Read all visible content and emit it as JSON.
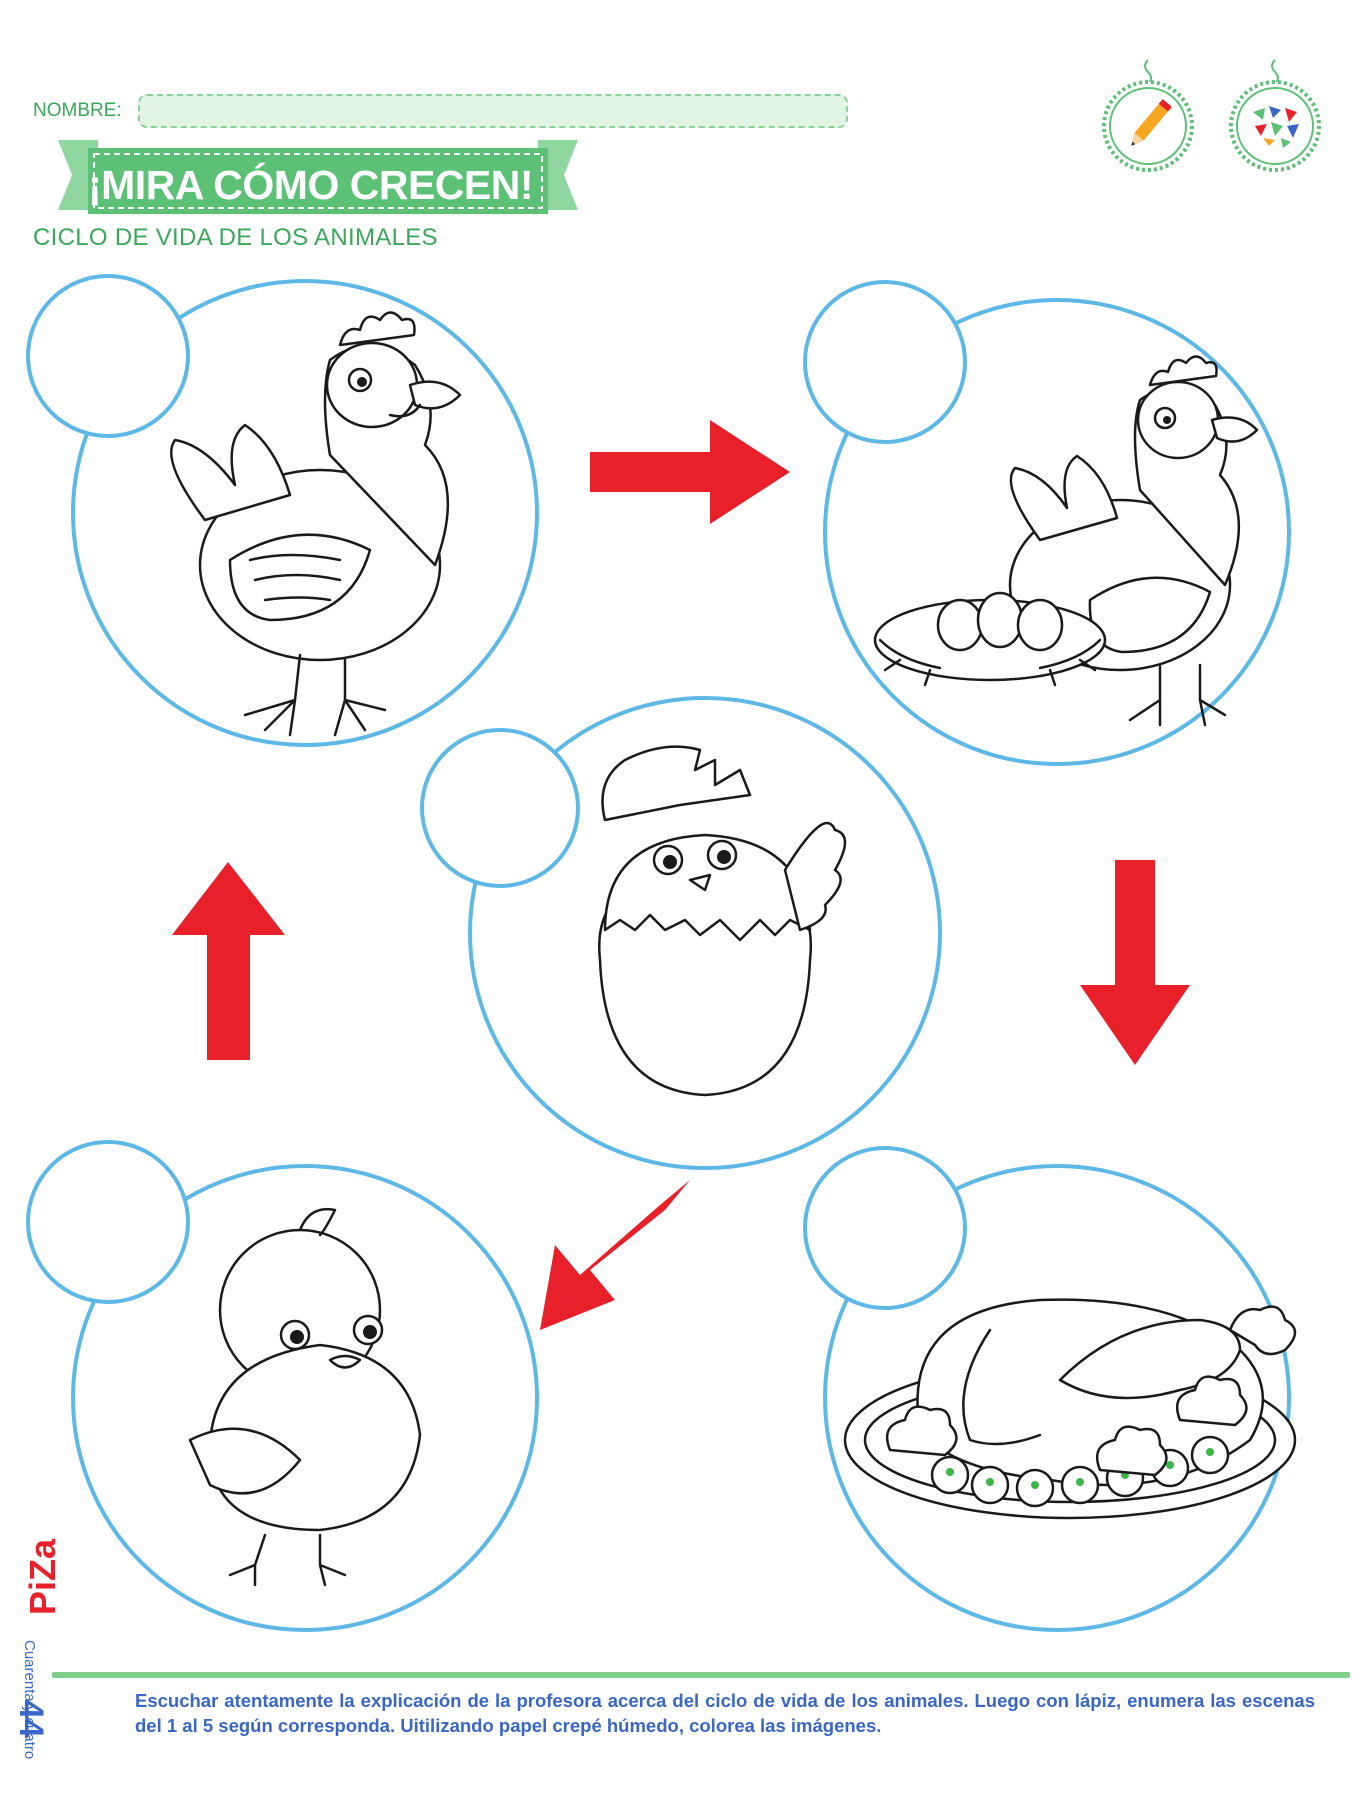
{
  "header": {
    "name_label": "NOMBRE:",
    "title": "¡MIRA CÓMO CRECEN!",
    "subtitle": "CICLO DE VIDA DE LOS ANIMALES",
    "badges": [
      {
        "icon": "pencil-icon"
      },
      {
        "icon": "crepe-paper-icon"
      }
    ]
  },
  "stages": [
    {
      "name": "hen",
      "illustration": "hen-icon"
    },
    {
      "name": "hen-with-nest-of-eggs",
      "illustration": "hen-nest-icon"
    },
    {
      "name": "chick-hatching",
      "illustration": "hatching-chick-icon"
    },
    {
      "name": "chick",
      "illustration": "chick-icon"
    },
    {
      "name": "roast-chicken",
      "illustration": "roast-chicken-icon"
    }
  ],
  "number_boxes": [
    "",
    "",
    "",
    "",
    ""
  ],
  "footer": {
    "instructions": "Escuchar atentamente la explicación de la profesora acerca del ciclo de vida de los animales. Luego con lápiz, enumera las escenas del 1 al 5 según corresponda. Uitilizando papel crepé húmedo, colorea las imágenes.",
    "page_number": "44",
    "page_word": "Cuarenta y cuatro",
    "publisher_logo": "piza-logo"
  },
  "colors": {
    "green_accent": "#5cc076",
    "label_green": "#3aa857",
    "circle_blue": "#5db8e6",
    "arrow_red": "#e8202a",
    "footer_blue": "#3a66c8"
  }
}
